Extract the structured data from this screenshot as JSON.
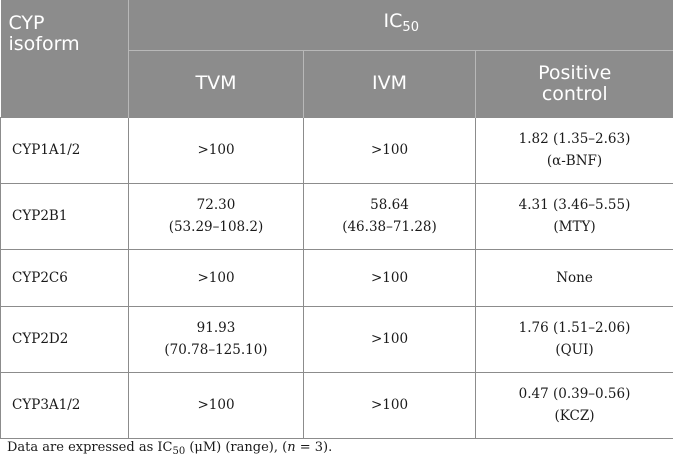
{
  "table": {
    "header": {
      "cyp_line1": "CYP",
      "cyp_line2": "isoform",
      "ic_main": "IC",
      "ic_sub": "50",
      "tvm": "TVM",
      "ivm": "IVM",
      "positive_line1": "Positive",
      "positive_line2": "control"
    },
    "rows": [
      {
        "isoform": "CYP1A1/2",
        "tvm": [
          ">100"
        ],
        "ivm": [
          ">100"
        ],
        "positive": [
          "1.82 (1.35–2.63)",
          "(α-BNF)"
        ]
      },
      {
        "isoform": "CYP2B1",
        "tvm": [
          "72.30",
          "(53.29–108.2)"
        ],
        "ivm": [
          "58.64",
          "(46.38–71.28)"
        ],
        "positive": [
          "4.31 (3.46–5.55)",
          "(MTY)"
        ]
      },
      {
        "isoform": "CYP2C6",
        "tvm": [
          ">100"
        ],
        "ivm": [
          ">100"
        ],
        "positive": [
          "None"
        ]
      },
      {
        "isoform": "CYP2D2",
        "tvm": [
          "91.93",
          "(70.78–125.10)"
        ],
        "ivm": [
          ">100"
        ],
        "positive": [
          "1.76 (1.51–2.06)",
          "(QUI)"
        ]
      },
      {
        "isoform": "CYP3A1/2",
        "tvm": [
          ">100"
        ],
        "ivm": [
          ">100"
        ],
        "positive": [
          "0.47 (0.39–0.56)",
          "(KCZ)"
        ]
      }
    ]
  },
  "footnote": {
    "part1": "Data are expressed as IC",
    "sub": "50",
    "part2": " (μM) (range), (",
    "n": "n",
    "part3": " = 3)."
  }
}
